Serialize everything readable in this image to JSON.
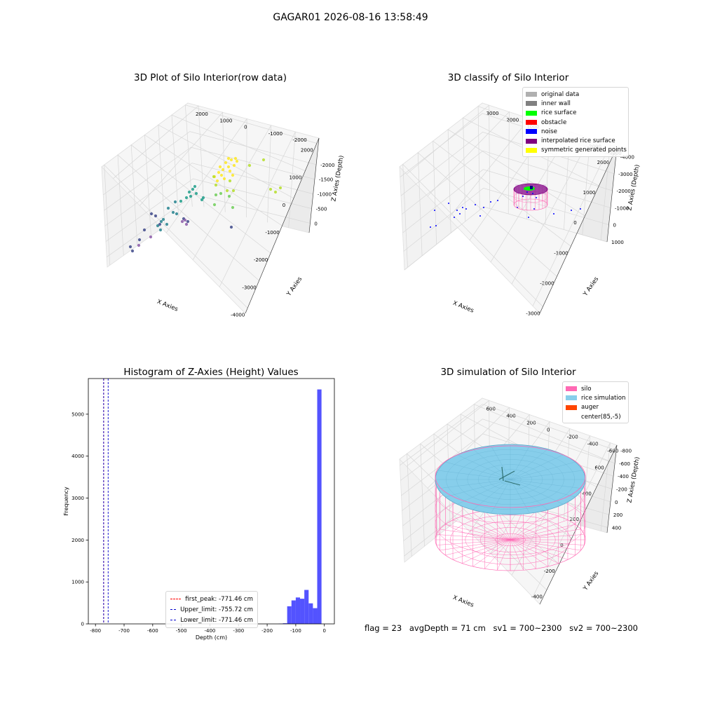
{
  "suptitle": "GAGAR01 2026-08-16 13:58:49",
  "chart_data": [
    {
      "type": "scatter",
      "projection": "3d",
      "title": "3D Plot of Silo Interior(row data)",
      "xlabel": "X Axies",
      "ylabel": "Y Axies",
      "zlabel": "Z Axies (Depth)",
      "x_ticks": [
        "-4000",
        "-3000",
        "-2000",
        "-1000",
        "0",
        "1000",
        "2000"
      ],
      "y_ticks": [
        "-2000",
        "-1000",
        "0",
        "1000",
        "2000"
      ],
      "z_ticks": [
        "0",
        "-500",
        "-1000",
        "-1500",
        "-2000"
      ],
      "grid": true,
      "colormap": "viridis"
    },
    {
      "type": "scatter",
      "projection": "3d",
      "title": "3D classify of Silo Interior",
      "xlabel": "X Axies",
      "ylabel": "Y Axies",
      "zlabel": "Z Axies (Depth)",
      "x_ticks": [
        "-3000",
        "-2000",
        "-1000",
        "0",
        "1000",
        "2000"
      ],
      "y_ticks": [
        "-3000",
        "-2000",
        "-1000",
        "0",
        "1000",
        "2000",
        "3000"
      ],
      "z_ticks": [
        "1000",
        "0",
        "-1000",
        "-2000",
        "-3000",
        "-4000"
      ],
      "grid": true,
      "legend": {
        "placement": "top-right",
        "entries": [
          {
            "label": "original data",
            "color": "#b0b0b0"
          },
          {
            "label": "inner wall",
            "color": "#808080"
          },
          {
            "label": "rice surface",
            "color": "#00ff00"
          },
          {
            "label": "obstacle",
            "color": "#ff0000"
          },
          {
            "label": "noise",
            "color": "#0000ff"
          },
          {
            "label": "interpolated rice surface",
            "color": "#800080"
          },
          {
            "label": "symmetric generated points",
            "color": "#ffff00"
          }
        ]
      }
    },
    {
      "type": "bar",
      "title": "Histogram of Z-Axies (Height) Values",
      "xlabel": "Depth (cm)",
      "ylabel": "Frequency",
      "xlim": [
        -825,
        35
      ],
      "ylim": [
        0,
        5850
      ],
      "x_ticks": [
        -800,
        -700,
        -600,
        -500,
        -400,
        -300,
        -200,
        -100,
        0
      ],
      "y_ticks": [
        0,
        1000,
        2000,
        3000,
        4000,
        5000
      ],
      "bar_color": "#4a4aff",
      "bins": [
        {
          "x0": -160,
          "x1": -145,
          "count": 5
        },
        {
          "x0": -145,
          "x1": -130,
          "count": 15
        },
        {
          "x0": -130,
          "x1": -115,
          "count": 420
        },
        {
          "x0": -115,
          "x1": -100,
          "count": 560
        },
        {
          "x0": -100,
          "x1": -85,
          "count": 630
        },
        {
          "x0": -85,
          "x1": -70,
          "count": 600
        },
        {
          "x0": -70,
          "x1": -55,
          "count": 810
        },
        {
          "x0": -55,
          "x1": -40,
          "count": 490
        },
        {
          "x0": -40,
          "x1": -25,
          "count": 375
        },
        {
          "x0": -25,
          "x1": -10,
          "count": 5590
        }
      ],
      "vlines": [
        {
          "x": -771.46,
          "color": "#ff0000"
        },
        {
          "x": -755.72,
          "color": "#0000cc"
        },
        {
          "x": -771.46,
          "color": "#0000cc"
        }
      ],
      "legend": {
        "placement": "lower-center",
        "entries": [
          {
            "label": "first_peak: -771.46 cm",
            "color": "#ff0000"
          },
          {
            "label": "Upper_limit: -755.72 cm",
            "color": "#0000cc"
          },
          {
            "label": "Lower_limit: -771.46 cm",
            "color": "#0000cc"
          }
        ]
      }
    },
    {
      "type": "surface",
      "projection": "3d",
      "title": "3D simulation of Silo Interior",
      "xlabel": "X Axies",
      "ylabel": "Y Axies",
      "zlabel": "Z Axies (Depth)",
      "x_ticks": [
        "-400",
        "-200",
        "0",
        "200",
        "400",
        "600"
      ],
      "y_ticks": [
        "-600",
        "-400",
        "-200",
        "0",
        "200",
        "400",
        "600"
      ],
      "z_ticks": [
        "400",
        "200",
        "0",
        "-200",
        "-400",
        "-600",
        "-800"
      ],
      "grid": true,
      "legend": {
        "placement": "top-right",
        "entries": [
          {
            "label": "silo",
            "color": "#ff69b4"
          },
          {
            "label": "rice simulation",
            "color": "#87ceeb"
          },
          {
            "label": "auger",
            "color": "#ff4500"
          },
          {
            "label": "center(85,-5)",
            "color": "#ffffff"
          }
        ]
      }
    }
  ],
  "status": {
    "flag": "flag = 23",
    "avg_depth": "avgDepth = 71 cm",
    "sv1": "sv1 = 700~2300",
    "sv2": "sv2 = 700~2300"
  }
}
